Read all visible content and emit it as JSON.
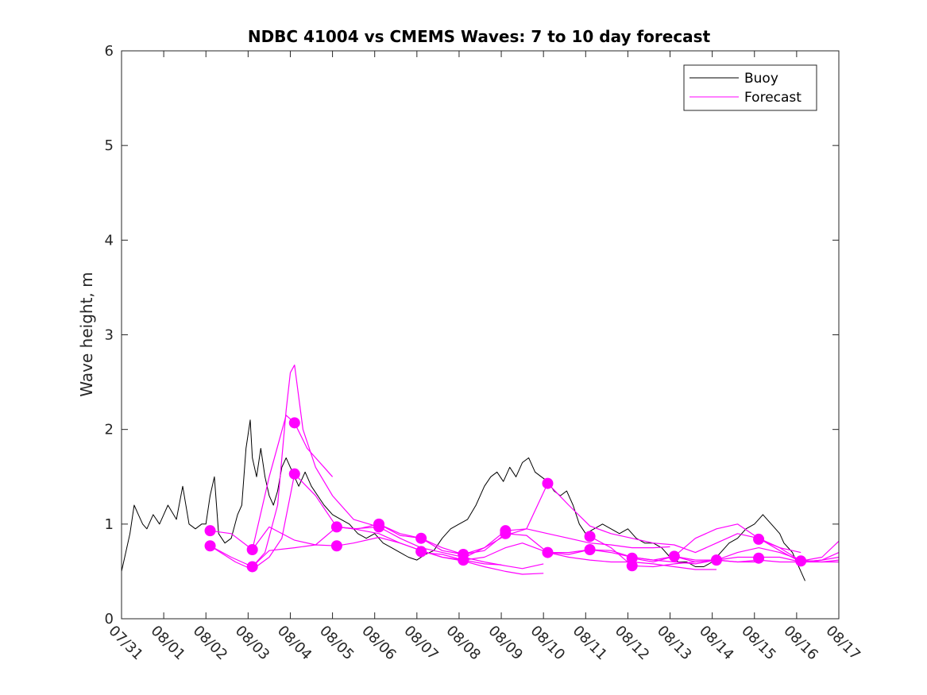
{
  "chart_data": {
    "type": "line",
    "title": "NDBC 41004 vs CMEMS Waves: 7 to 10 day forecast",
    "xlabel": "",
    "ylabel": "Wave height, m",
    "xlim": [
      0,
      17
    ],
    "ylim": [
      0,
      6
    ],
    "x_ticks": [
      0,
      1,
      2,
      3,
      4,
      5,
      6,
      7,
      8,
      9,
      10,
      11,
      12,
      13,
      14,
      15,
      16,
      17
    ],
    "x_tick_labels": [
      "07/31",
      "08/01",
      "08/02",
      "08/03",
      "08/04",
      "08/05",
      "08/06",
      "08/07",
      "08/08",
      "08/09",
      "08/10",
      "08/11",
      "08/12",
      "08/13",
      "08/14",
      "08/15",
      "08/16",
      "08/17"
    ],
    "y_ticks": [
      0,
      1,
      2,
      3,
      4,
      5,
      6
    ],
    "y_tick_labels": [
      "0",
      "1",
      "2",
      "3",
      "4",
      "5",
      "6"
    ],
    "legend": {
      "position": "top-right",
      "entries": [
        {
          "label": "Buoy",
          "color": "#000000"
        },
        {
          "label": "Forecast",
          "color": "#ff00ff"
        }
      ]
    },
    "colors": {
      "buoy": "#000000",
      "forecast": "#ff00ff",
      "axis": "#262626"
    },
    "series": [
      {
        "name": "Buoy",
        "x": [
          0,
          0.1,
          0.2,
          0.3,
          0.4,
          0.5,
          0.6,
          0.75,
          0.9,
          1.0,
          1.1,
          1.3,
          1.45,
          1.6,
          1.75,
          1.9,
          2.0,
          2.1,
          2.2,
          2.3,
          2.45,
          2.6,
          2.75,
          2.85,
          2.95,
          3.05,
          3.1,
          3.2,
          3.3,
          3.4,
          3.5,
          3.6,
          3.7,
          3.8,
          3.9,
          4.0,
          4.1,
          4.2,
          4.35,
          4.5,
          4.65,
          4.8,
          5.0,
          5.2,
          5.4,
          5.6,
          5.8,
          6.0,
          6.2,
          6.4,
          6.6,
          6.8,
          7.0,
          7.2,
          7.4,
          7.6,
          7.8,
          8.0,
          8.2,
          8.4,
          8.6,
          8.75,
          8.9,
          9.05,
          9.2,
          9.35,
          9.5,
          9.65,
          9.8,
          9.95,
          10.1,
          10.25,
          10.4,
          10.55,
          10.7,
          10.85,
          11.0,
          11.2,
          11.4,
          11.6,
          11.8,
          12.0,
          12.2,
          12.4,
          12.6,
          12.8,
          13.0,
          13.2,
          13.4,
          13.6,
          13.8,
          14.0,
          14.2,
          14.4,
          14.6,
          14.8,
          15.0,
          15.1,
          15.2,
          15.3,
          15.4,
          15.5,
          15.6,
          15.7,
          15.8,
          15.9,
          16.0,
          16.1,
          16.2
        ],
        "y": [
          0.5,
          0.7,
          0.9,
          1.2,
          1.1,
          1.0,
          0.95,
          1.1,
          1.0,
          1.1,
          1.2,
          1.05,
          1.4,
          1.0,
          0.95,
          1.0,
          1.0,
          1.3,
          1.5,
          0.9,
          0.8,
          0.85,
          1.1,
          1.2,
          1.8,
          2.1,
          1.7,
          1.5,
          1.8,
          1.5,
          1.3,
          1.2,
          1.35,
          1.6,
          1.7,
          1.6,
          1.5,
          1.4,
          1.55,
          1.4,
          1.3,
          1.2,
          1.1,
          1.05,
          1.0,
          0.9,
          0.85,
          0.9,
          0.8,
          0.75,
          0.7,
          0.65,
          0.62,
          0.68,
          0.72,
          0.85,
          0.95,
          1.0,
          1.05,
          1.2,
          1.4,
          1.5,
          1.55,
          1.45,
          1.6,
          1.5,
          1.65,
          1.7,
          1.55,
          1.5,
          1.45,
          1.35,
          1.3,
          1.35,
          1.2,
          1.0,
          0.9,
          0.95,
          1.0,
          0.95,
          0.9,
          0.95,
          0.85,
          0.8,
          0.8,
          0.75,
          0.65,
          0.6,
          0.6,
          0.55,
          0.55,
          0.6,
          0.7,
          0.8,
          0.85,
          0.95,
          1.0,
          1.05,
          1.1,
          1.05,
          1.0,
          0.95,
          0.9,
          0.8,
          0.75,
          0.7,
          0.6,
          0.5,
          0.4
        ]
      },
      {
        "name": "Forecast",
        "x": [
          2.1,
          2.6,
          3.1,
          3.5,
          3.9,
          4.1,
          4.4,
          4.6,
          4.8,
          5.0
        ],
        "y": [
          0.93,
          0.9,
          0.73,
          1.5,
          2.15,
          2.07,
          1.8,
          1.7,
          1.6,
          1.5
        ]
      },
      {
        "name": "Forecast",
        "x": [
          2.1,
          2.6,
          3.1,
          3.4,
          3.7,
          3.9,
          4.0,
          4.1,
          4.3,
          4.6,
          5.0,
          5.5,
          6.1
        ],
        "y": [
          0.77,
          0.65,
          0.55,
          0.7,
          1.2,
          2.2,
          2.6,
          2.68,
          2.0,
          1.6,
          1.3,
          1.05,
          0.97
        ]
      },
      {
        "name": "Forecast",
        "x": [
          2.1,
          2.7,
          3.1,
          3.5,
          3.8,
          4.1,
          4.6,
          5.1,
          5.5,
          6.1,
          6.6,
          7.1,
          7.6,
          8.1,
          8.6,
          9.0
        ],
        "y": [
          0.77,
          0.6,
          0.52,
          0.65,
          0.85,
          1.53,
          1.3,
          0.97,
          0.95,
          0.9,
          0.8,
          0.72,
          0.65,
          0.62,
          0.58,
          0.57
        ]
      },
      {
        "name": "Forecast",
        "x": [
          3.1,
          3.5,
          4.1,
          4.6,
          5.1,
          5.5,
          6.1,
          6.6,
          7.1,
          7.6,
          8.1,
          8.6,
          9.1,
          9.5,
          10.0
        ],
        "y": [
          0.73,
          0.97,
          0.83,
          0.78,
          0.97,
          0.95,
          0.97,
          0.85,
          0.75,
          0.7,
          0.65,
          0.6,
          0.56,
          0.53,
          0.58
        ]
      },
      {
        "name": "Forecast",
        "x": [
          3.1,
          3.5,
          4.1,
          4.6,
          5.1,
          5.5,
          6.1,
          6.6,
          7.1,
          7.6,
          8.1,
          8.6,
          9.1,
          9.5,
          10.0
        ],
        "y": [
          0.55,
          0.72,
          0.75,
          0.78,
          0.77,
          0.8,
          0.86,
          0.8,
          0.72,
          0.65,
          0.61,
          0.55,
          0.5,
          0.47,
          0.48
        ]
      },
      {
        "name": "Forecast",
        "x": [
          5.1,
          5.6,
          6.1,
          6.6,
          7.1,
          7.6,
          8.1,
          8.6,
          9.1,
          9.6,
          10.1,
          10.6,
          11.1,
          11.6,
          12.1,
          12.6,
          13.0
        ],
        "y": [
          0.97,
          0.95,
          1.0,
          0.9,
          0.85,
          0.75,
          0.68,
          0.75,
          0.93,
          0.95,
          0.9,
          0.85,
          0.8,
          0.78,
          0.75,
          0.75,
          0.76
        ]
      },
      {
        "name": "Forecast",
        "x": [
          6.1,
          6.6,
          7.1,
          7.6,
          8.1,
          8.6,
          9.1,
          9.6,
          10.1,
          10.6,
          11.1,
          11.6,
          12.1,
          12.6,
          13.1,
          13.6,
          14.1
        ],
        "y": [
          1.0,
          0.88,
          0.85,
          0.72,
          0.68,
          0.72,
          0.9,
          0.88,
          0.7,
          0.65,
          0.62,
          0.6,
          0.6,
          0.58,
          0.55,
          0.52,
          0.52
        ]
      },
      {
        "name": "Forecast",
        "x": [
          7.1,
          7.6,
          8.1,
          8.6,
          9.1,
          9.5,
          10.1,
          10.6,
          11.1,
          11.6,
          12.1,
          12.6,
          13.1,
          13.6,
          14.1,
          14.6,
          15.1
        ],
        "y": [
          0.7,
          0.68,
          0.62,
          0.65,
          0.75,
          0.8,
          0.7,
          0.68,
          0.73,
          0.7,
          0.65,
          0.62,
          0.6,
          0.58,
          0.62,
          0.6,
          0.6
        ]
      },
      {
        "name": "Forecast",
        "x": [
          8.1,
          8.6,
          9.1,
          9.6,
          10.1,
          10.6,
          11.1,
          11.6,
          12.1,
          12.6,
          13.1,
          13.6,
          14.1,
          14.6,
          15.1,
          15.6,
          16.1
        ],
        "y": [
          0.64,
          0.75,
          0.88,
          0.95,
          1.43,
          1.2,
          0.98,
          0.9,
          0.85,
          0.8,
          0.78,
          0.7,
          0.8,
          0.9,
          0.85,
          0.75,
          0.7
        ]
      },
      {
        "name": "Forecast",
        "x": [
          10.1,
          10.6,
          11.1,
          11.6,
          12.1,
          12.6,
          13.1,
          13.6,
          14.1,
          14.6,
          15.1,
          15.6,
          16.1,
          16.6,
          17.0
        ],
        "y": [
          0.7,
          0.7,
          0.73,
          0.72,
          0.65,
          0.62,
          0.66,
          0.6,
          0.62,
          0.65,
          0.65,
          0.65,
          0.6,
          0.6,
          0.6
        ]
      },
      {
        "name": "Forecast",
        "x": [
          11.1,
          11.6,
          12.1,
          12.6,
          13.1,
          13.6,
          14.1,
          14.6,
          15.1,
          15.6,
          16.1,
          16.6,
          17.0
        ],
        "y": [
          0.87,
          0.75,
          0.56,
          0.55,
          0.58,
          0.6,
          0.62,
          0.6,
          0.62,
          0.6,
          0.6,
          0.62,
          0.65
        ]
      },
      {
        "name": "Forecast",
        "x": [
          12.1,
          12.6,
          13.1,
          13.6,
          14.1,
          14.6,
          15.1,
          15.6,
          16.1,
          16.6,
          17.0
        ],
        "y": [
          0.64,
          0.6,
          0.66,
          0.85,
          0.95,
          1.0,
          0.85,
          0.72,
          0.6,
          0.62,
          0.7
        ]
      },
      {
        "name": "Forecast",
        "x": [
          13.1,
          13.6,
          14.1,
          14.6,
          15.1,
          15.6,
          16.1,
          16.6,
          17.0
        ],
        "y": [
          0.66,
          0.62,
          0.62,
          0.7,
          0.75,
          0.7,
          0.62,
          0.6,
          0.62
        ]
      },
      {
        "name": "Forecast",
        "x": [
          15.1,
          15.6,
          16.1,
          16.6,
          17.0
        ],
        "y": [
          0.84,
          0.75,
          0.61,
          0.65,
          0.82
        ]
      }
    ],
    "forecast_markers": {
      "x": [
        2.1,
        2.1,
        3.1,
        3.1,
        4.1,
        4.1,
        5.1,
        5.1,
        6.1,
        6.1,
        7.1,
        7.1,
        8.1,
        8.1,
        9.1,
        9.1,
        10.1,
        10.1,
        11.1,
        11.1,
        12.1,
        12.1,
        13.1,
        14.1,
        15.1,
        15.1,
        16.1
      ],
      "y": [
        0.93,
        0.77,
        0.73,
        0.55,
        2.07,
        1.53,
        0.97,
        0.77,
        1.0,
        0.97,
        0.85,
        0.71,
        0.68,
        0.62,
        0.93,
        0.9,
        1.43,
        0.7,
        0.87,
        0.73,
        0.64,
        0.56,
        0.66,
        0.62,
        0.84,
        0.64,
        0.61
      ]
    }
  }
}
